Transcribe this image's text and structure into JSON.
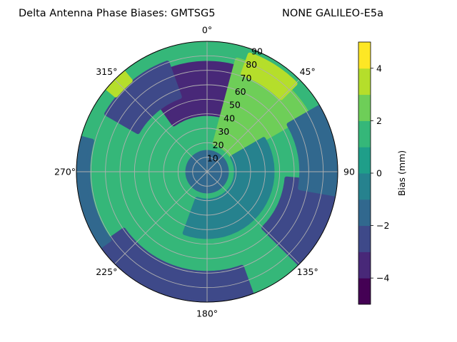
{
  "chart_data": {
    "type": "heatmap",
    "projection": "polar",
    "title_left": "Delta Antenna Phase Biases: GMTSG5",
    "title_right": "NONE GALILEO-E5a",
    "theta_zero": "top",
    "theta_direction": "clockwise",
    "theta_tick_labels": [
      "0°",
      "45°",
      "90",
      "135°",
      "180°",
      "225°",
      "270°",
      "315°"
    ],
    "theta_tick_values": [
      0,
      45,
      90,
      135,
      180,
      225,
      270,
      315
    ],
    "r_tick_labels": [
      "10",
      "20",
      "30",
      "40",
      "50",
      "60",
      "70",
      "80",
      "90"
    ],
    "r_tick_values": [
      10,
      20,
      30,
      40,
      50,
      60,
      70,
      80,
      90
    ],
    "rlim": [
      0,
      90
    ],
    "grid": true,
    "colormap": "viridis",
    "colorbar": {
      "label": "Bias (mm)",
      "vmin": -5,
      "vmax": 5,
      "levels": [
        -5,
        -4,
        -3,
        -2,
        -1,
        0,
        1,
        2,
        3,
        4,
        5
      ],
      "tick_values": [
        -4,
        -2,
        0,
        2,
        4
      ],
      "tick_labels": [
        "−4",
        "−2",
        "0",
        "2",
        "4"
      ],
      "colors": [
        "#440154",
        "#482878",
        "#3e4989",
        "#31688e",
        "#26828e",
        "#1f9e89",
        "#35b779",
        "#6ece58",
        "#b5de2b",
        "#fde725"
      ]
    },
    "background_level_value": 1.5,
    "regions": [
      {
        "azimuth": [
          325,
          20
        ],
        "zenith": [
          40,
          75
        ],
        "value": -3.5
      },
      {
        "azimuth": [
          300,
          340
        ],
        "zenith": [
          55,
          80
        ],
        "value": -2.5
      },
      {
        "azimuth": [
          15,
          60
        ],
        "zenith": [
          20,
          80
        ],
        "value": 2.5
      },
      {
        "azimuth": [
          20,
          45
        ],
        "zenith": [
          72,
          86
        ],
        "value": 3.5
      },
      {
        "azimuth": [
          310,
          320
        ],
        "zenith": [
          82,
          90
        ],
        "value": 3.5
      },
      {
        "azimuth": [
          95,
          135
        ],
        "zenith": [
          55,
          90
        ],
        "value": -2.5
      },
      {
        "azimuth": [
          60,
          100
        ],
        "zenith": [
          65,
          90
        ],
        "value": -1.5
      },
      {
        "azimuth": [
          160,
          235
        ],
        "zenith": [
          70,
          90
        ],
        "value": -2.5
      },
      {
        "azimuth": [
          235,
          285
        ],
        "zenith": [
          82,
          90
        ],
        "value": -1.5
      },
      {
        "azimuth": [
          0,
          360
        ],
        "zenith": [
          0,
          15
        ],
        "value": -1.5
      },
      {
        "azimuth": [
          60,
          200
        ],
        "zenith": [
          20,
          45
        ],
        "value": -0.5
      }
    ]
  }
}
